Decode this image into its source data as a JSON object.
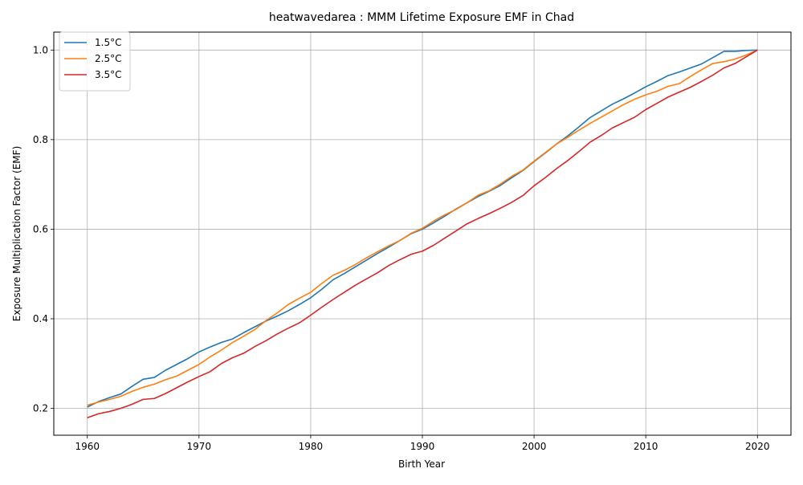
{
  "chart_data": {
    "type": "line",
    "title": "heatwavedarea : MMM Lifetime Exposure EMF in Chad",
    "xlabel": "Birth Year",
    "ylabel": "Exposure Multiplication Factor (EMF)",
    "xlim": [
      1957,
      2023
    ],
    "ylim": [
      0.14,
      1.04
    ],
    "xticks": [
      1960,
      1970,
      1980,
      1990,
      2000,
      2010,
      2020
    ],
    "yticks": [
      0.2,
      0.4,
      0.6,
      0.8,
      1.0
    ],
    "xtick_labels": [
      "1960",
      "1970",
      "1980",
      "1990",
      "2000",
      "2010",
      "2020"
    ],
    "ytick_labels": [
      "0.2",
      "0.4",
      "0.6",
      "0.8",
      "1.0"
    ],
    "grid": true,
    "legend_position": "top-left",
    "x": [
      1960,
      1961,
      1962,
      1963,
      1964,
      1965,
      1966,
      1967,
      1968,
      1969,
      1970,
      1971,
      1972,
      1973,
      1974,
      1975,
      1976,
      1977,
      1978,
      1979,
      1980,
      1981,
      1982,
      1983,
      1984,
      1985,
      1986,
      1987,
      1988,
      1989,
      1990,
      1991,
      1992,
      1993,
      1994,
      1995,
      1996,
      1997,
      1998,
      1999,
      2000,
      2001,
      2002,
      2003,
      2004,
      2005,
      2006,
      2007,
      2008,
      2009,
      2010,
      2011,
      2012,
      2013,
      2014,
      2015,
      2016,
      2017,
      2018,
      2019,
      2020
    ],
    "series": [
      {
        "name": "1.5°C",
        "color": "#1f77b4",
        "values": [
          0.203,
          0.215,
          0.224,
          0.232,
          0.249,
          0.265,
          0.269,
          0.285,
          0.298,
          0.311,
          0.326,
          0.337,
          0.347,
          0.355,
          0.369,
          0.382,
          0.395,
          0.406,
          0.418,
          0.432,
          0.447,
          0.466,
          0.487,
          0.501,
          0.516,
          0.531,
          0.546,
          0.56,
          0.575,
          0.59,
          0.6,
          0.614,
          0.629,
          0.645,
          0.659,
          0.673,
          0.685,
          0.698,
          0.715,
          0.731,
          0.751,
          0.77,
          0.79,
          0.808,
          0.828,
          0.849,
          0.864,
          0.879,
          0.891,
          0.904,
          0.918,
          0.93,
          0.943,
          0.951,
          0.96,
          0.969,
          0.983,
          0.997,
          0.997,
          0.999,
          1.0
        ]
      },
      {
        "name": "2.5°C",
        "color": "#ff7f0e",
        "values": [
          0.207,
          0.214,
          0.22,
          0.227,
          0.238,
          0.247,
          0.254,
          0.264,
          0.272,
          0.285,
          0.298,
          0.315,
          0.33,
          0.347,
          0.361,
          0.376,
          0.396,
          0.413,
          0.432,
          0.446,
          0.459,
          0.479,
          0.497,
          0.508,
          0.521,
          0.536,
          0.55,
          0.563,
          0.575,
          0.591,
          0.602,
          0.618,
          0.632,
          0.644,
          0.659,
          0.676,
          0.686,
          0.701,
          0.718,
          0.732,
          0.752,
          0.771,
          0.79,
          0.805,
          0.821,
          0.836,
          0.85,
          0.864,
          0.878,
          0.89,
          0.9,
          0.908,
          0.919,
          0.925,
          0.941,
          0.956,
          0.97,
          0.974,
          0.98,
          0.989,
          1.0
        ]
      },
      {
        "name": "3.5°C",
        "color": "#d62728",
        "values": [
          0.179,
          0.188,
          0.193,
          0.2,
          0.209,
          0.22,
          0.222,
          0.233,
          0.246,
          0.259,
          0.271,
          0.282,
          0.3,
          0.313,
          0.323,
          0.338,
          0.351,
          0.366,
          0.379,
          0.391,
          0.408,
          0.426,
          0.443,
          0.459,
          0.475,
          0.489,
          0.503,
          0.519,
          0.532,
          0.544,
          0.551,
          0.564,
          0.58,
          0.596,
          0.612,
          0.624,
          0.635,
          0.647,
          0.66,
          0.675,
          0.697,
          0.715,
          0.735,
          0.753,
          0.773,
          0.794,
          0.809,
          0.826,
          0.838,
          0.85,
          0.867,
          0.881,
          0.895,
          0.906,
          0.917,
          0.93,
          0.944,
          0.96,
          0.97,
          0.985,
          1.0
        ]
      }
    ]
  }
}
